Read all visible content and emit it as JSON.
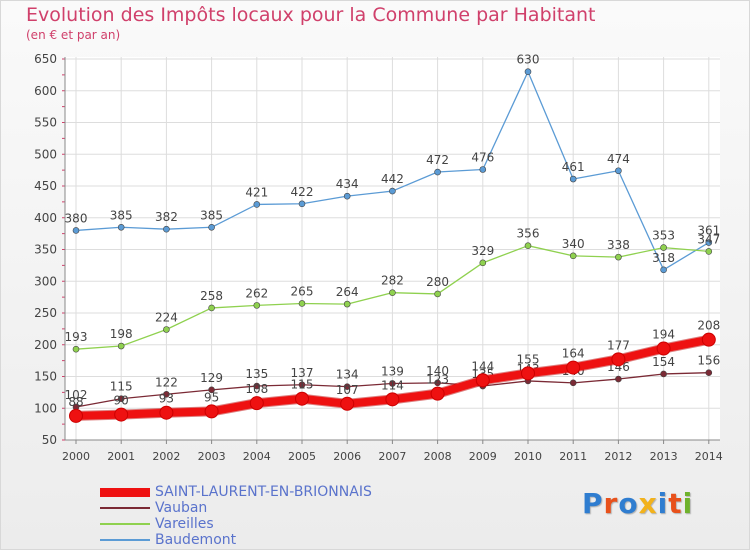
{
  "title": "Evolution des Impôts locaux pour la Commune par Habitant",
  "subtitle": "(en € et par an)",
  "logo": {
    "text": "Proxiti",
    "colors": [
      "#2f7dd0",
      "#e8511b",
      "#2f7dd0",
      "#f2b21c",
      "#2f7dd0",
      "#e8511b",
      "#6fb22c"
    ]
  },
  "chart_data": {
    "type": "line",
    "x": [
      2000,
      2001,
      2002,
      2003,
      2004,
      2005,
      2006,
      2007,
      2008,
      2009,
      2010,
      2011,
      2012,
      2013,
      2014
    ],
    "ylim": [
      50,
      650
    ],
    "yticks": [
      50,
      100,
      150,
      200,
      250,
      300,
      350,
      400,
      450,
      500,
      550,
      600,
      650
    ],
    "grid": true,
    "legend_position": "bottom-left",
    "series": [
      {
        "name": "Baudemont",
        "color": "#5b9bd5",
        "values": [
          380,
          385,
          382,
          385,
          421,
          422,
          434,
          442,
          472,
          476,
          630,
          461,
          474,
          318,
          361
        ]
      },
      {
        "name": "Vareilles",
        "color": "#8fd14f",
        "values": [
          193,
          198,
          224,
          258,
          262,
          265,
          264,
          282,
          280,
          329,
          356,
          340,
          338,
          353,
          347
        ]
      },
      {
        "name": "Vauban",
        "color": "#7b2a35",
        "values": [
          102,
          115,
          122,
          129,
          135,
          137,
          134,
          139,
          140,
          135,
          143,
          140,
          146,
          154,
          156
        ]
      },
      {
        "name": "SAINT-LAURENT-EN-BRIONNAIS",
        "color": "#ee1111",
        "values": [
          88,
          90,
          93,
          95,
          108,
          115,
          107,
          114,
          123,
          144,
          155,
          164,
          177,
          194,
          208
        ]
      }
    ]
  }
}
